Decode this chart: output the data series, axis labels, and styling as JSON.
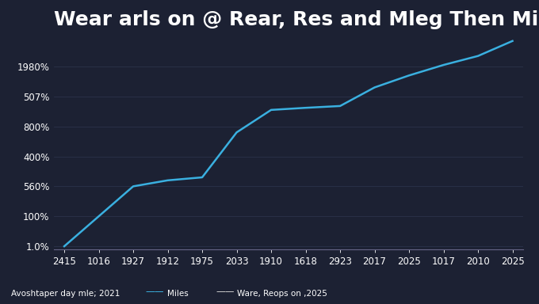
{
  "title": "Wear arls on @ Rear, Res and Mleg Then Mile.",
  "background_color": "#1c2133",
  "text_color": "#ffffff",
  "line_color": "#3ab0e0",
  "line_color2": "#cccccc",
  "x_labels": [
    "2415",
    "1016",
    "1927",
    "1912",
    "1975",
    "2033",
    "1910",
    "1618",
    "2923",
    "2017",
    "2025",
    "1017",
    "2010",
    "2025"
  ],
  "y_tick_labels": [
    "1.0%",
    "100%",
    "560%",
    "400%",
    "800%",
    "507%",
    "1980%"
  ],
  "line_data_y": [
    0,
    1,
    2,
    2.2,
    2.3,
    3.8,
    4.55,
    4.62,
    4.68,
    5.3,
    5.7,
    6.05,
    6.35,
    6.85
  ],
  "legend_text": "Avoshtaper day mle; 2021",
  "legend_miles": "Miles",
  "legend_ware": "Ware, Reops on ,2025",
  "title_fontsize": 18,
  "label_fontsize": 8.5,
  "legend_fontsize": 7.5,
  "grid_color": "#2e3650"
}
